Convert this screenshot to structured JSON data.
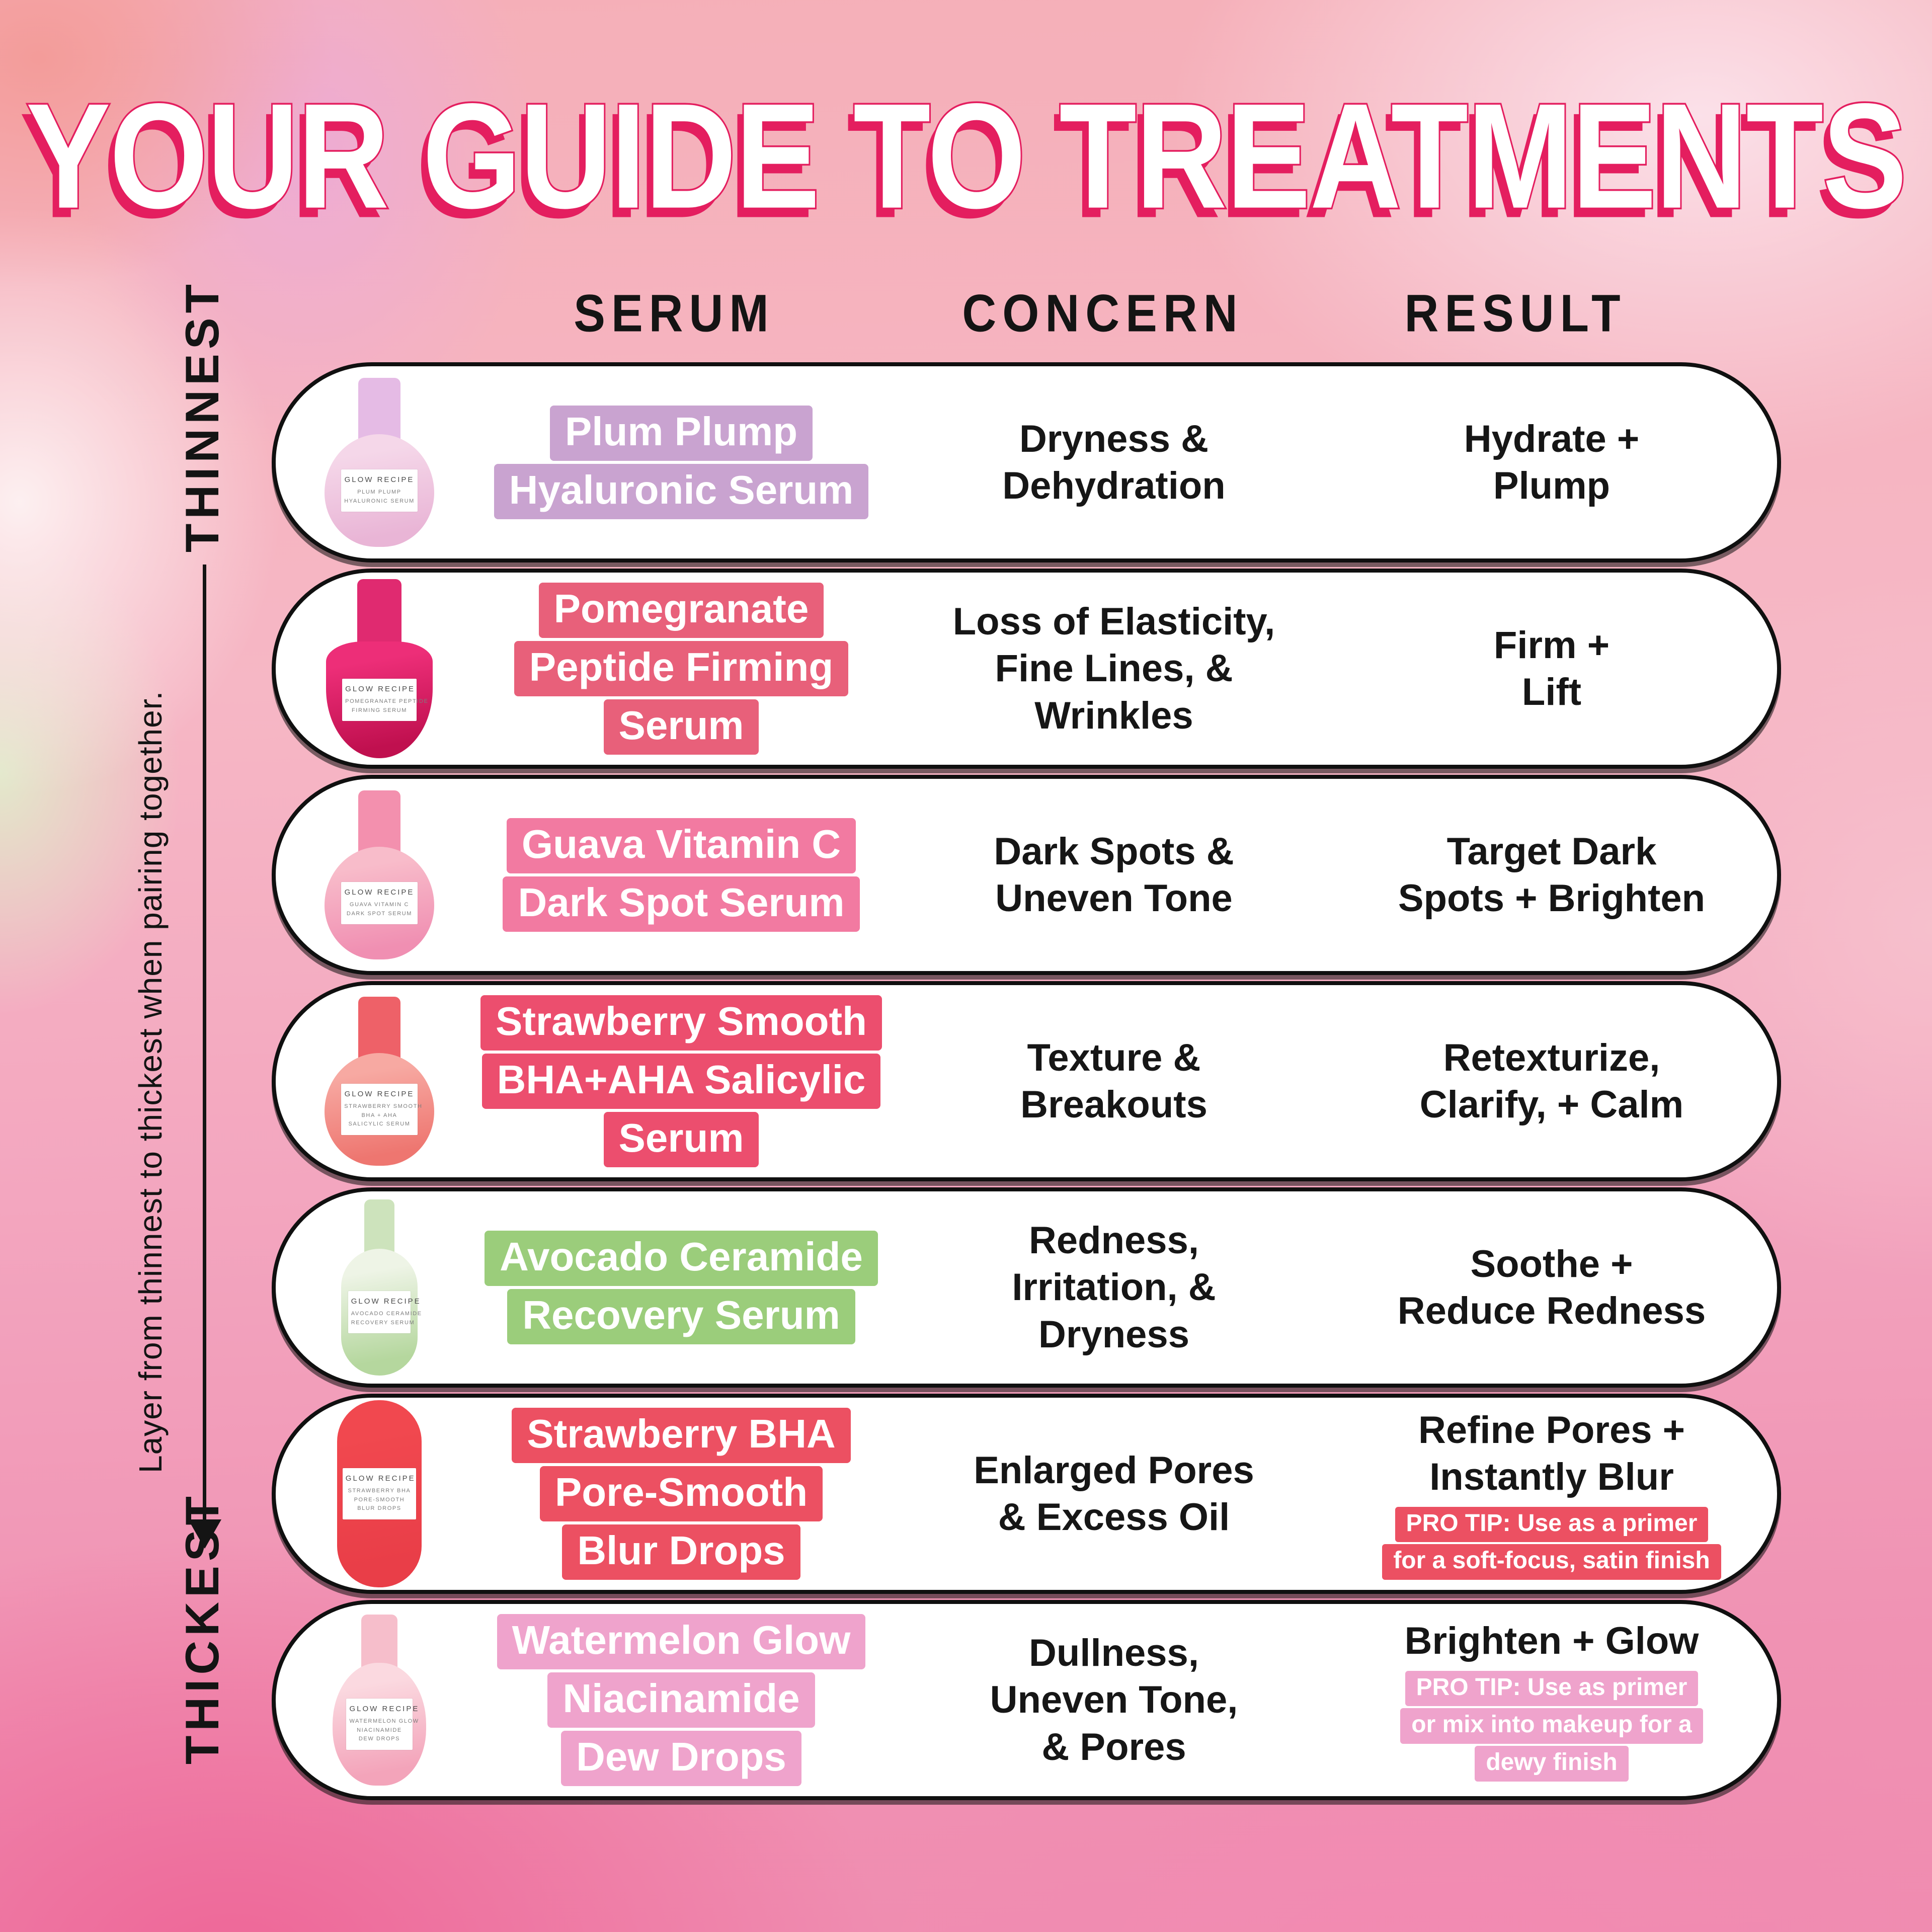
{
  "title": "YOUR GUIDE TO TREATMENTS",
  "columns": {
    "serum": "SERUM",
    "concern": "CONCERN",
    "result": "RESULT"
  },
  "rail": {
    "top_label": "THINNEST",
    "bottom_label": "THICKEST",
    "side_note": "Layer from thinnest to thickest when pairing together."
  },
  "palette": {
    "title_fill": "#ffffff",
    "title_outline": "#e41e5f",
    "text_black": "#141414",
    "pill_background": "#ffffff",
    "bg_top_left_salmon": "#f39b98",
    "bg_lavender_blob": "#ebaadc",
    "bg_green_blob": "#e0eecb",
    "bg_bottom_left_pink": "#ee6496",
    "bg_bottom_right_pink": "#f38ab2"
  },
  "rows": [
    {
      "serum": [
        "Plum Plump",
        "Hyaluronic Serum"
      ],
      "concern": [
        "Dryness &",
        "Dehydration"
      ],
      "result": [
        "Hydrate +",
        "Plump"
      ],
      "pro_tip": null,
      "accent": "#c9a3d0",
      "bottle": {
        "shape": "plum",
        "cap_color": "#e5bbe5",
        "body_top": "#f5d7e9",
        "body_bottom": "#e9b5d6",
        "label_lines": [
          "GLOW RECIPE",
          "PLUM PLUMP",
          "HYALURONIC SERUM"
        ]
      }
    },
    {
      "serum": [
        "Pomegranate",
        "Peptide Firming",
        "Serum"
      ],
      "concern": [
        "Loss of Elasticity,",
        "Fine Lines, &",
        "Wrinkles"
      ],
      "result": [
        "Firm +",
        "Lift"
      ],
      "pro_tip": null,
      "accent": "#e8607a",
      "bottle": {
        "shape": "flask",
        "cap_color": "#e02a70",
        "body_top": "#ed2e78",
        "body_bottom": "#c0104f",
        "label_lines": [
          "GLOW RECIPE",
          "POMEGRANATE PEPTIDE",
          "FIRMING SERUM"
        ]
      }
    },
    {
      "serum": [
        "Guava Vitamin C",
        "Dark Spot Serum"
      ],
      "concern": [
        "Dark Spots &",
        "Uneven Tone"
      ],
      "result": [
        "Target Dark",
        "Spots + Brighten"
      ],
      "pro_tip": null,
      "accent": "#f27aa1",
      "bottle": {
        "shape": "plum",
        "cap_color": "#f390ae",
        "body_top": "#f8bcca",
        "body_bottom": "#f08fb2",
        "label_lines": [
          "GLOW RECIPE",
          "GUAVA VITAMIN C",
          "DARK SPOT SERUM"
        ]
      }
    },
    {
      "serum": [
        "Strawberry Smooth",
        "BHA+AHA Salicylic",
        "Serum"
      ],
      "concern": [
        "Texture &",
        "Breakouts"
      ],
      "result": [
        "Retexturize,",
        "Clarify, + Calm"
      ],
      "pro_tip": null,
      "accent": "#ec4e6e",
      "bottle": {
        "shape": "plum",
        "cap_color": "#ee6168",
        "body_top": "#f7a9a2",
        "body_bottom": "#ee7670",
        "label_lines": [
          "GLOW RECIPE",
          "STRAWBERRY SMOOTH",
          "BHA + AHA",
          "SALICYLIC SERUM"
        ]
      }
    },
    {
      "serum": [
        "Avocado Ceramide",
        "Recovery Serum"
      ],
      "concern": [
        "Redness,",
        "Irritation, &",
        "Dryness"
      ],
      "result": [
        "Soothe +",
        "Reduce Redness"
      ],
      "pro_tip": null,
      "accent": "#9bcd7b",
      "bottle": {
        "shape": "oval",
        "cap_color": "#cde3bc",
        "body_top": "#eef4e6",
        "body_bottom": "#b5d79e",
        "label_lines": [
          "GLOW RECIPE",
          "AVOCADO CERAMIDE",
          "RECOVERY SERUM"
        ]
      }
    },
    {
      "serum": [
        "Strawberry BHA",
        "Pore-Smooth",
        "Blur Drops"
      ],
      "concern": [
        "Enlarged Pores",
        "& Excess Oil"
      ],
      "result": [
        "Refine Pores +",
        "Instantly Blur"
      ],
      "pro_tip": [
        "PRO TIP: Use as a primer",
        "for a soft-focus, satin finish"
      ],
      "accent": "#ec5062",
      "bottle": {
        "shape": "capsule",
        "cap_color": "transparent",
        "body_top": "#f1484f",
        "body_bottom": "#e93e48",
        "label_lines": [
          "GLOW RECIPE",
          "STRAWBERRY BHA",
          "PORE-SMOOTH",
          "BLUR DROPS"
        ]
      }
    },
    {
      "serum": [
        "Watermelon Glow",
        "Niacinamide",
        "Dew Drops"
      ],
      "concern": [
        "Dullness,",
        "Uneven Tone,",
        "& Pores"
      ],
      "result": [
        "Brighten + Glow"
      ],
      "pro_tip": [
        "PRO TIP: Use as primer",
        "or mix into makeup for a",
        "dewy finish"
      ],
      "accent": "#efa3cc",
      "bottle": {
        "shape": "dew",
        "cap_color": "#f6becb",
        "body_top": "#fbd9e0",
        "body_bottom": "#f3a4ba",
        "label_lines": [
          "GLOW RECIPE",
          "WATERMELON GLOW",
          "NIACINAMIDE",
          "DEW DROPS"
        ]
      }
    }
  ]
}
